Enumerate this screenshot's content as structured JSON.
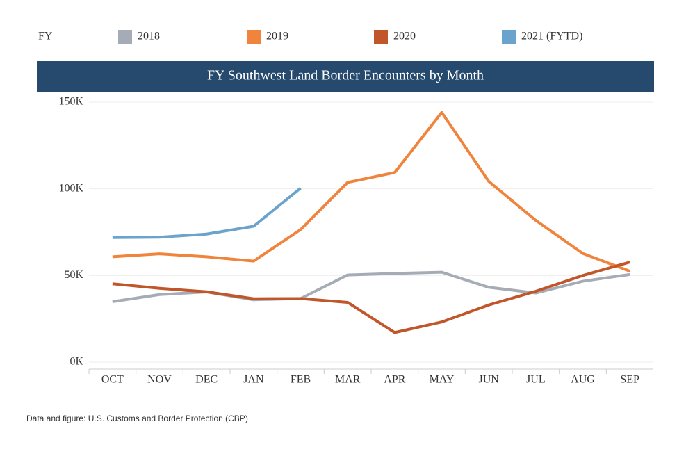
{
  "chart_data": {
    "type": "line",
    "title": "FY Southwest Land Border Encounters by Month",
    "legend_title": "FY",
    "source": "Data and figure: U.S. Customs and Border Protection (CBP)",
    "categories": [
      "OCT",
      "NOV",
      "DEC",
      "JAN",
      "FEB",
      "MAR",
      "APR",
      "MAY",
      "JUN",
      "JUL",
      "AUG",
      "SEP"
    ],
    "series": [
      {
        "name": "2018",
        "color": "#a5acb5",
        "values": [
          34900,
          39000,
          40500,
          36000,
          36700,
          50300,
          51200,
          51900,
          43200,
          39900,
          46700,
          50600
        ]
      },
      {
        "name": "2019",
        "color": "#f0843c",
        "values": [
          60800,
          62500,
          60800,
          58300,
          76500,
          103700,
          109400,
          144100,
          104300,
          81800,
          62700,
          52500
        ]
      },
      {
        "name": "2020",
        "color": "#c0562a",
        "values": [
          45200,
          42600,
          40600,
          36600,
          36700,
          34500,
          17100,
          23200,
          33000,
          40900,
          50000,
          57700
        ]
      },
      {
        "name": "2021 (FYTD)",
        "color": "#6aa3cb",
        "values": [
          71900,
          72100,
          73900,
          78400,
          100400,
          null,
          null,
          null,
          null,
          null,
          null,
          null
        ]
      }
    ],
    "ylim": [
      0,
      150000
    ],
    "yticks": [
      {
        "value": 0,
        "label": "0K"
      },
      {
        "value": 50000,
        "label": "50K"
      },
      {
        "value": 100000,
        "label": "100K"
      },
      {
        "value": 150000,
        "label": "150K"
      }
    ],
    "grid": true
  }
}
